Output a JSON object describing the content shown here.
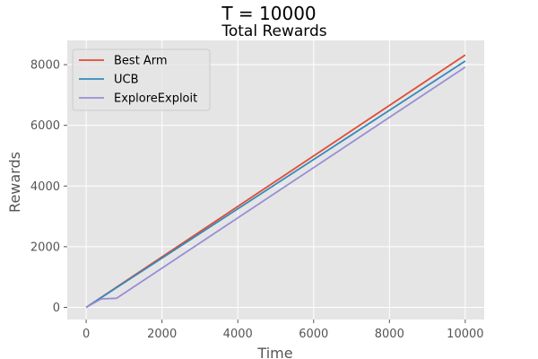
{
  "suptitle": "T = 10000",
  "chart_data": {
    "type": "line",
    "title": "Total Rewards",
    "xlabel": "Time",
    "ylabel": "Rewards",
    "xlim": [
      -500,
      10500
    ],
    "ylim": [
      -400,
      8800
    ],
    "xticks": [
      0,
      2000,
      4000,
      6000,
      8000,
      10000
    ],
    "yticks": [
      0,
      2000,
      4000,
      6000,
      8000
    ],
    "grid": true,
    "legend_position": "upper-left",
    "colors": {
      "background": "#e5e5e5",
      "grid": "#ffffff",
      "best_arm": "#e24a33",
      "ucb": "#348abd",
      "explore_exploit": "#988ed5"
    },
    "series": [
      {
        "name": "Best Arm",
        "color": "#e24a33",
        "x": [
          0,
          10000
        ],
        "y": [
          0,
          8320
        ]
      },
      {
        "name": "UCB",
        "color": "#348abd",
        "x": [
          0,
          10000
        ],
        "y": [
          0,
          8120
        ]
      },
      {
        "name": "ExploreExploit",
        "color": "#988ed5",
        "x": [
          0,
          400,
          800,
          10000
        ],
        "y": [
          0,
          280,
          300,
          7920
        ]
      }
    ]
  }
}
